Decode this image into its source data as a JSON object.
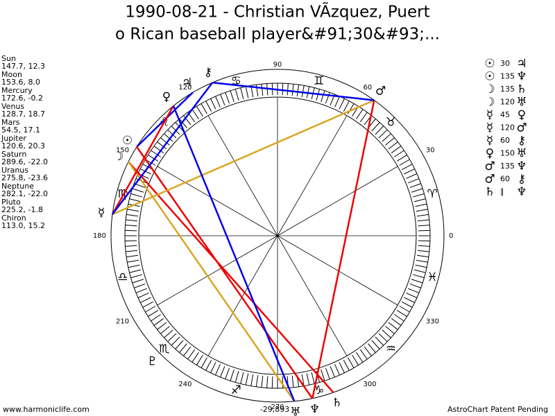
{
  "header": {
    "title_lines": [
      "1990-08-21 - Christian VÃ­zquez, Puert",
      "o Rican baseball player&#91;30&#93;..."
    ]
  },
  "planets": [
    {
      "name": "Sun",
      "coords": "147.7, 12.3",
      "glyph": "☉"
    },
    {
      "name": "Moon",
      "coords": "153.6, 8.0",
      "glyph": "☽"
    },
    {
      "name": "Mercury",
      "coords": "172.6, -0.2",
      "glyph": "☿"
    },
    {
      "name": "Venus",
      "coords": "128.7, 18.7",
      "glyph": "♀"
    },
    {
      "name": "Mars",
      "coords": "54.5, 17.1",
      "glyph": "♂"
    },
    {
      "name": "Jupiter",
      "coords": "120.6, 20.3",
      "glyph": "♃"
    },
    {
      "name": "Saturn",
      "coords": "289.6, -22.0",
      "glyph": "♄"
    },
    {
      "name": "Uranus",
      "coords": "275.8, -23.6",
      "glyph": "♅"
    },
    {
      "name": "Neptune",
      "coords": "282.1, -22.0",
      "glyph": "♆"
    },
    {
      "name": "Pluto",
      "coords": "225.2, -1.8",
      "glyph": "♇"
    },
    {
      "name": "Chiron",
      "coords": "113.0, 15.2",
      "glyph": "⚷"
    }
  ],
  "aspects": [
    {
      "from": "☉",
      "angle": "30",
      "to": "♃",
      "color": "#0000ee"
    },
    {
      "from": "☉",
      "angle": "135",
      "to": "♆",
      "color": "#ee0000"
    },
    {
      "from": "☽",
      "angle": "135",
      "to": "♄",
      "color": "#ee0000"
    },
    {
      "from": "☽",
      "angle": "120",
      "to": "♅",
      "color": "#daa520"
    },
    {
      "from": "☿",
      "angle": "45",
      "to": "♀",
      "color": "#ee0000"
    },
    {
      "from": "☿",
      "angle": "120",
      "to": "♂",
      "color": "#daa520"
    },
    {
      "from": "☿",
      "angle": "60",
      "to": "⚷",
      "color": "#0000ee"
    },
    {
      "from": "♀",
      "angle": "150",
      "to": "♅",
      "color": "#0000ee"
    },
    {
      "from": "♂",
      "angle": "135",
      "to": "♆",
      "color": "#ee0000"
    },
    {
      "from": "♂",
      "angle": "60",
      "to": "⚷",
      "color": "#0000ee"
    },
    {
      "from": "♄",
      "angle": "∥",
      "to": "♆"
    }
  ],
  "zodiac": [
    "♈",
    "♉",
    "♊",
    "♋",
    "♌",
    "♍",
    "♎",
    "♏",
    "♐",
    "♑",
    "♒",
    "♓"
  ],
  "degree_labels": [
    0,
    30,
    60,
    90,
    120,
    150,
    180,
    210,
    240,
    270,
    300,
    330
  ],
  "footer": {
    "left": "www.harmoniclife.com",
    "center": "-29,893",
    "right": "AstroChart Patent Pending"
  }
}
